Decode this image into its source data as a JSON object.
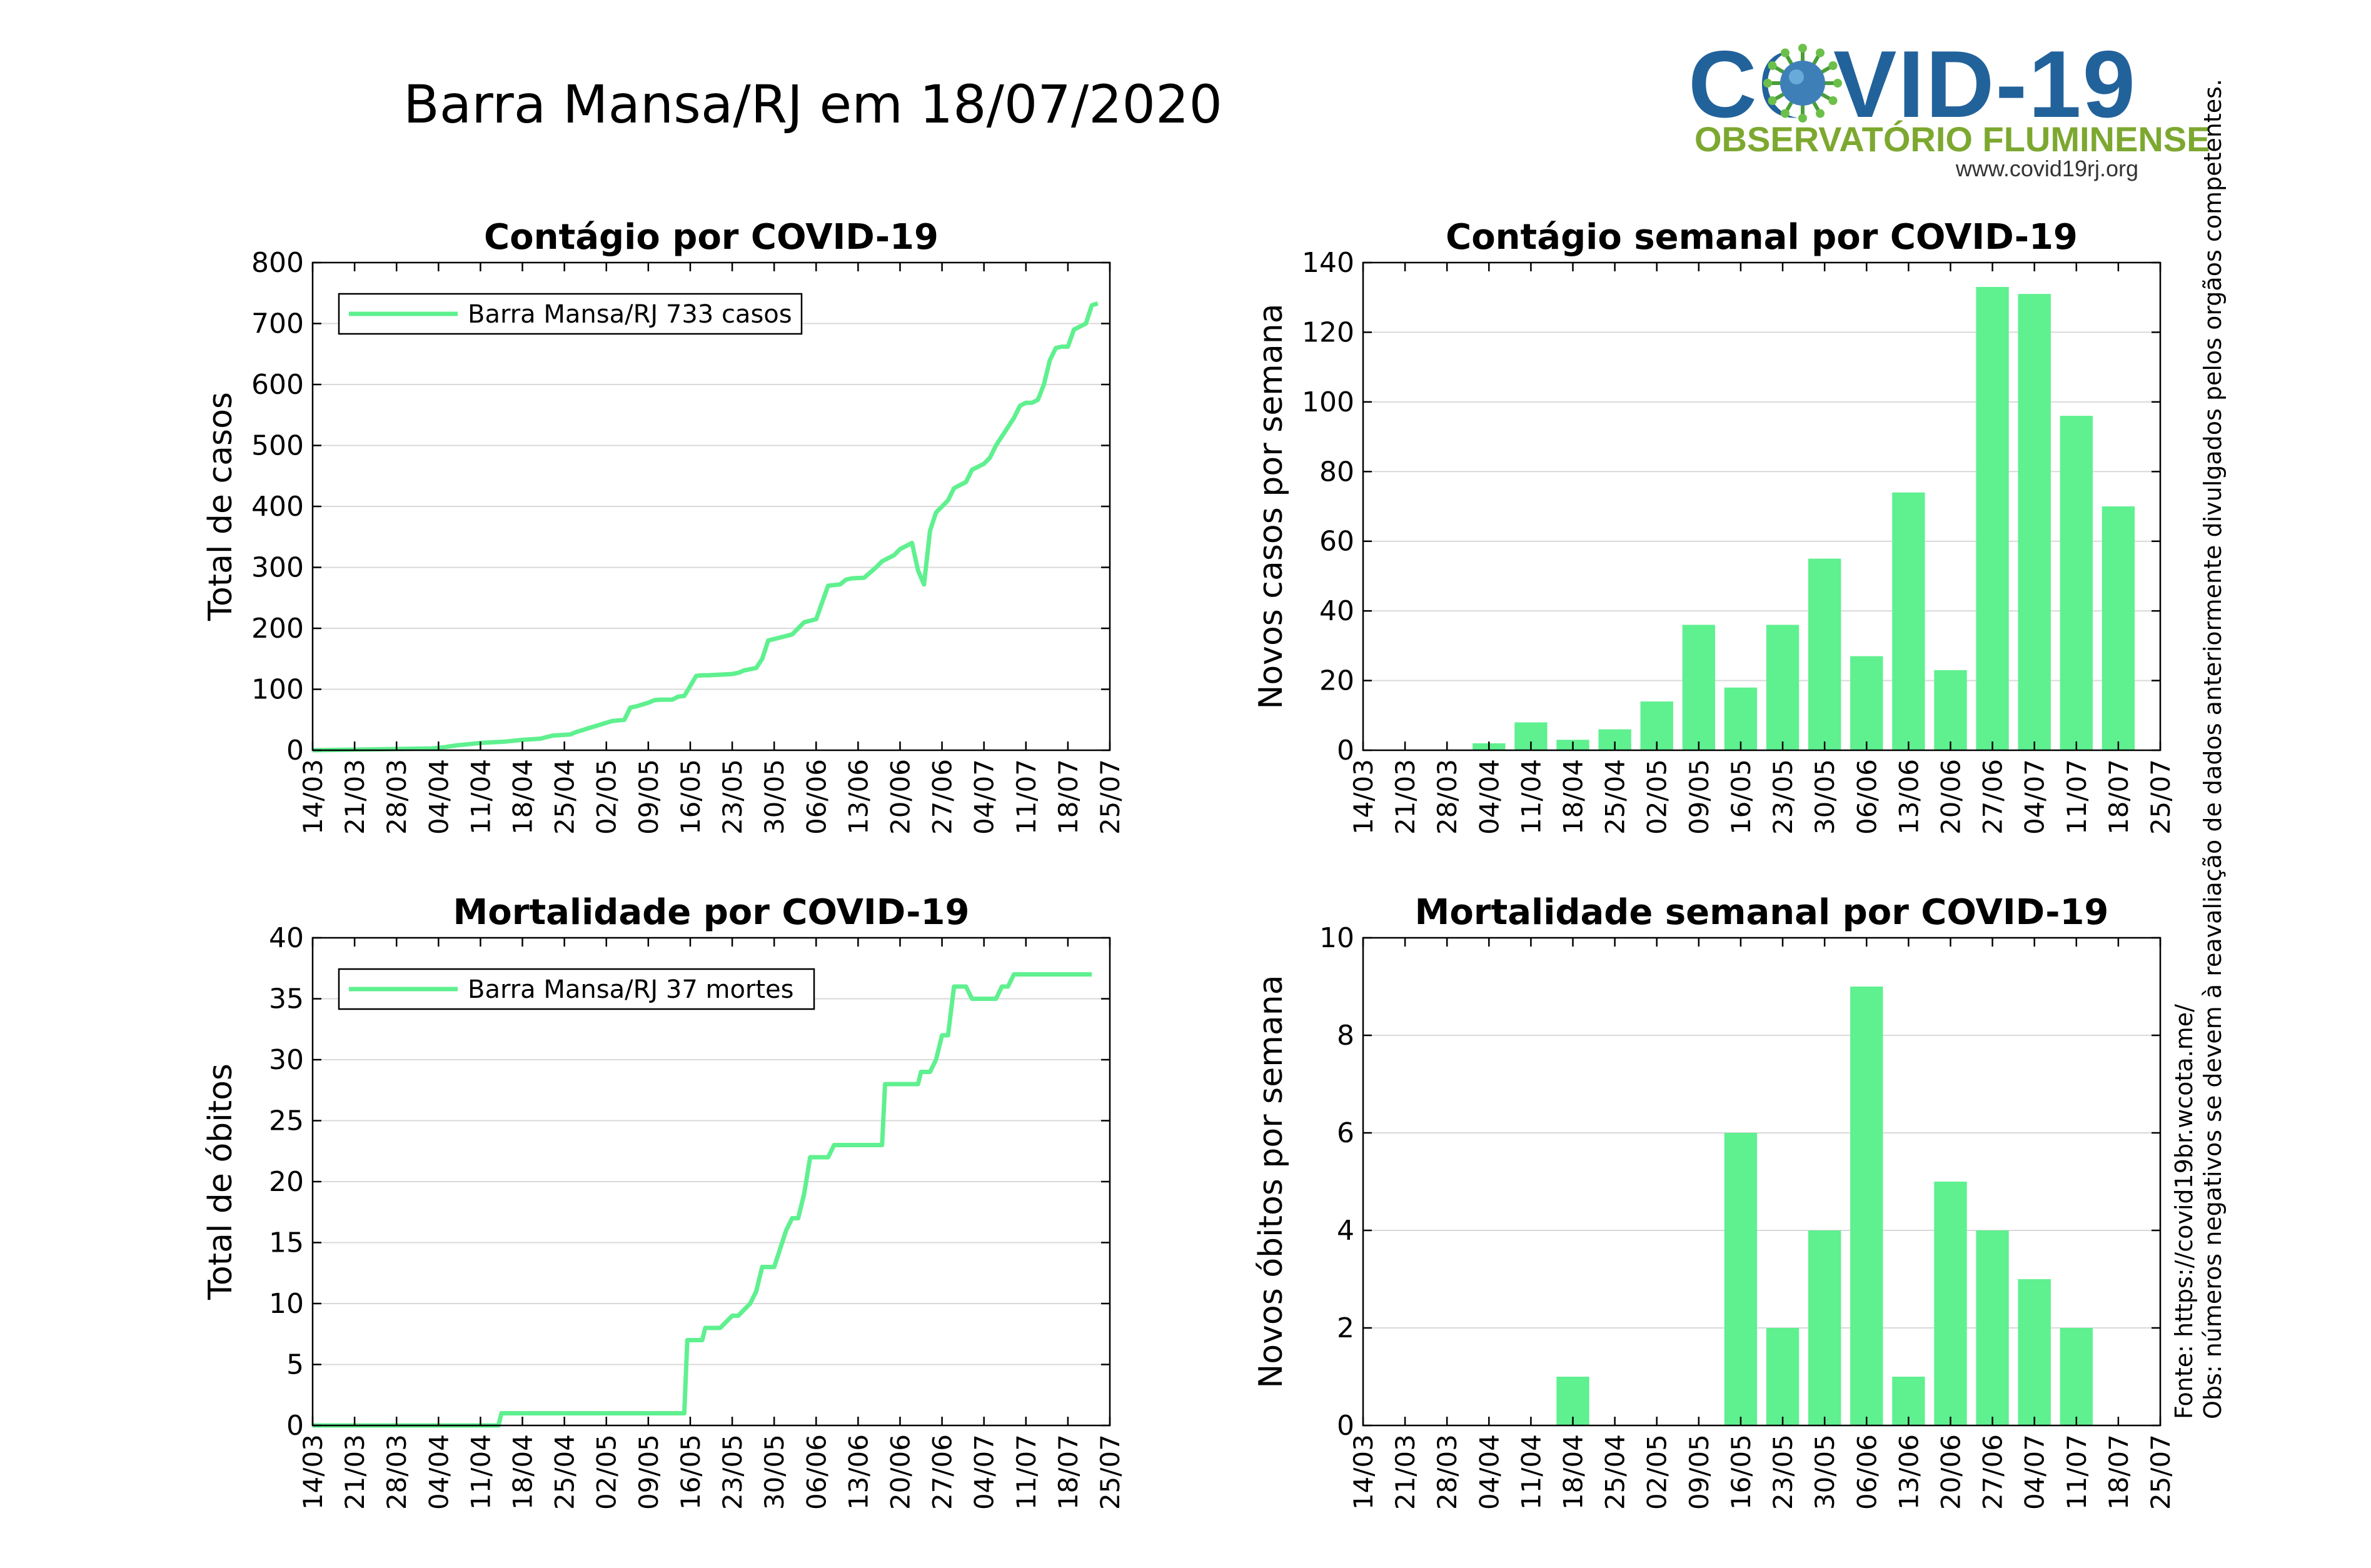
{
  "page": {
    "title": "Barra Mansa/RJ em 18/07/2020"
  },
  "logo": {
    "text": "COVID-19",
    "subtitle": "OBSERVATÓRIO FLUMINENSE",
    "url": "www.covid19rj.org"
  },
  "notes": {
    "source": "Fonte: https://covid19br.wcota.me/",
    "obs": "Obs: números negativos se devem à reavaliação de dados anteriormente divulgados pelos orgãos competentes."
  },
  "colors": {
    "series": "#5ff08f",
    "grid": "#d9d9d9",
    "axis": "#000000"
  },
  "chart_data": [
    {
      "id": "cases_total",
      "type": "line",
      "title": "Contágio por COVID-19",
      "xlabel": "",
      "ylabel": "Total de casos",
      "xlim": [
        0,
        133
      ],
      "ylim": [
        0,
        800
      ],
      "yticks": [
        0,
        100,
        200,
        300,
        400,
        500,
        600,
        700,
        800
      ],
      "xtick_labels": [
        "14/03",
        "21/03",
        "28/03",
        "04/04",
        "11/04",
        "18/04",
        "25/04",
        "02/05",
        "09/05",
        "16/05",
        "23/05",
        "30/05",
        "06/06",
        "13/06",
        "20/06",
        "27/06",
        "04/07",
        "11/07",
        "18/07",
        "25/07"
      ],
      "xtick_step_days": 7,
      "grid": "horizontal",
      "legend": {
        "position": "top-left",
        "entries": [
          {
            "series": "Barra Mansa/RJ",
            "text": "Barra Mansa/RJ  733 casos"
          }
        ]
      },
      "series": [
        {
          "name": "Barra Mansa/RJ",
          "x": [
            0,
            20,
            22,
            24,
            26,
            28,
            30,
            32,
            35,
            38,
            40,
            43,
            44,
            46,
            48,
            50,
            52,
            53,
            54,
            56,
            57,
            58,
            60,
            61,
            62,
            64,
            65,
            66,
            70,
            71,
            72,
            74,
            75,
            76,
            80,
            81,
            82,
            84,
            86,
            88,
            89,
            90,
            92,
            94,
            95,
            96,
            97,
            98,
            100,
            101,
            102,
            103,
            104,
            106,
            107,
            108,
            109,
            110,
            111,
            112,
            113,
            114,
            116,
            117,
            118,
            119,
            120,
            121,
            122,
            123,
            124,
            125,
            126,
            127,
            128,
            129,
            130,
            131
          ],
          "y": [
            0,
            3,
            5,
            8,
            10,
            12,
            13,
            14,
            17,
            19,
            24,
            26,
            30,
            36,
            42,
            48,
            50,
            70,
            72,
            78,
            82,
            83,
            83,
            88,
            89,
            122,
            123,
            123,
            125,
            127,
            131,
            135,
            150,
            180,
            190,
            200,
            210,
            215,
            270,
            272,
            280,
            282,
            283,
            300,
            310,
            315,
            320,
            330,
            340,
            295,
            272,
            360,
            390,
            410,
            430,
            435,
            440,
            460,
            465,
            470,
            480,
            500,
            530,
            545,
            565,
            570,
            570,
            575,
            600,
            640,
            660,
            662,
            662,
            690,
            695,
            700,
            730,
            733
          ]
        }
      ]
    },
    {
      "id": "cases_weekly",
      "type": "bar",
      "title": "Contágio semanal por COVID-19",
      "xlabel": "",
      "ylabel": "Novos casos por semana",
      "ylim": [
        0,
        140
      ],
      "yticks": [
        0,
        20,
        40,
        60,
        80,
        100,
        120,
        140
      ],
      "xtick_labels": [
        "14/03",
        "21/03",
        "28/03",
        "04/04",
        "11/04",
        "18/04",
        "25/04",
        "02/05",
        "09/05",
        "16/05",
        "23/05",
        "30/05",
        "06/06",
        "13/06",
        "20/06",
        "27/06",
        "04/07",
        "11/07",
        "18/07",
        "25/07"
      ],
      "grid": "horizontal",
      "categories": [
        "14/03",
        "21/03",
        "28/03",
        "04/04",
        "11/04",
        "18/04",
        "25/04",
        "02/05",
        "09/05",
        "16/05",
        "23/05",
        "30/05",
        "06/06",
        "13/06",
        "20/06",
        "27/06",
        "04/07",
        "11/07",
        "18/07"
      ],
      "values": [
        0,
        0,
        0,
        2,
        8,
        3,
        6,
        14,
        36,
        18,
        36,
        55,
        27,
        74,
        23,
        133,
        131,
        96,
        70
      ]
    },
    {
      "id": "deaths_total",
      "type": "line",
      "title": "Mortalidade por COVID-19",
      "xlabel": "",
      "ylabel": "Total de óbitos",
      "xlim": [
        0,
        133
      ],
      "ylim": [
        0,
        40
      ],
      "yticks": [
        0,
        5,
        10,
        15,
        20,
        25,
        30,
        35,
        40
      ],
      "xtick_labels": [
        "14/03",
        "21/03",
        "28/03",
        "04/04",
        "11/04",
        "18/04",
        "25/04",
        "02/05",
        "09/05",
        "16/05",
        "23/05",
        "30/05",
        "06/06",
        "13/06",
        "20/06",
        "27/06",
        "04/07",
        "11/07",
        "18/07",
        "25/07"
      ],
      "xtick_step_days": 7,
      "grid": "horizontal",
      "legend": {
        "position": "top-left",
        "entries": [
          {
            "series": "Barra Mansa/RJ",
            "text": "Barra Mansa/RJ  37 mortes"
          }
        ]
      },
      "series": [
        {
          "name": "Barra Mansa/RJ",
          "x": [
            0,
            31,
            31.5,
            62,
            62.5,
            65,
            65.5,
            67,
            68,
            70,
            71,
            73,
            74,
            75,
            76,
            77,
            79,
            80,
            81,
            82,
            83,
            84,
            86,
            87,
            89,
            90,
            91,
            95,
            95.5,
            96,
            101,
            101.5,
            103,
            104,
            105,
            106,
            107,
            109,
            110,
            111,
            114,
            115,
            116,
            117,
            119,
            120,
            121,
            122,
            123,
            124,
            125,
            126,
            130
          ],
          "y": [
            0,
            0,
            1,
            1,
            7,
            7,
            8,
            8,
            8,
            9,
            9,
            10,
            11,
            13,
            13,
            13,
            16,
            17,
            17,
            19,
            22,
            22,
            22,
            23,
            23,
            23,
            23,
            23,
            28,
            28,
            28,
            29,
            29,
            30,
            32,
            32,
            36,
            36,
            35,
            35,
            35,
            36,
            36,
            37,
            37,
            37,
            37,
            37,
            37,
            37,
            37,
            37,
            37
          ]
        }
      ]
    },
    {
      "id": "deaths_weekly",
      "type": "bar",
      "title": "Mortalidade semanal por COVID-19",
      "xlabel": "",
      "ylabel": "Novos óbitos por semana",
      "ylim": [
        0,
        10
      ],
      "yticks": [
        0,
        2,
        4,
        6,
        8,
        10
      ],
      "xtick_labels": [
        "14/03",
        "21/03",
        "28/03",
        "04/04",
        "11/04",
        "18/04",
        "25/04",
        "02/05",
        "09/05",
        "16/05",
        "23/05",
        "30/05",
        "06/06",
        "13/06",
        "20/06",
        "27/06",
        "04/07",
        "11/07",
        "18/07",
        "25/07"
      ],
      "grid": "horizontal",
      "categories": [
        "14/03",
        "21/03",
        "28/03",
        "04/04",
        "11/04",
        "18/04",
        "25/04",
        "02/05",
        "09/05",
        "16/05",
        "23/05",
        "30/05",
        "06/06",
        "13/06",
        "20/06",
        "27/06",
        "04/07",
        "11/07",
        "18/07"
      ],
      "values": [
        0,
        0,
        0,
        0,
        0,
        1,
        0,
        0,
        0,
        6,
        2,
        4,
        9,
        1,
        5,
        4,
        3,
        2,
        0
      ]
    }
  ]
}
